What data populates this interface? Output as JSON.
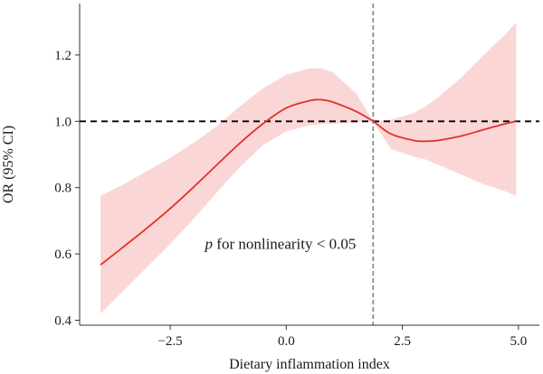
{
  "chart_data": {
    "type": "line",
    "title": "",
    "xlabel": "Dietary inflammation index",
    "ylabel": "OR (95% CI)",
    "xlim": [
      -4.45,
      5.45
    ],
    "ylim": [
      0.385,
      1.355
    ],
    "x_ticks": [
      -2.5,
      0.0,
      2.5,
      5.0
    ],
    "x_tick_labels": [
      "−2.5",
      "0.0",
      "2.5",
      "5.0"
    ],
    "y_ticks": [
      0.4,
      0.6,
      0.8,
      1.0,
      1.2
    ],
    "y_tick_labels": [
      "0.4",
      "0.6",
      "0.8",
      "1.0",
      "1.2"
    ],
    "grid": false,
    "reference_line_y": 1.0,
    "reference_line_x": 1.87,
    "annotation": {
      "p_symbol": "p",
      "text": " for nonlinearity < 0.05",
      "x": -1.75,
      "y": 0.615
    },
    "series": [
      {
        "x": [
          -4.0,
          -3.5,
          -3.0,
          -2.5,
          -2.0,
          -1.5,
          -1.0,
          -0.5,
          0.0,
          0.5,
          0.75,
          1.0,
          1.5,
          1.87,
          2.25,
          2.75,
          3.0,
          3.25,
          3.75,
          4.25,
          4.7,
          4.95
        ],
        "y": [
          0.567,
          0.622,
          0.678,
          0.737,
          0.801,
          0.868,
          0.934,
          0.993,
          1.04,
          1.062,
          1.065,
          1.058,
          1.03,
          1.0,
          0.962,
          0.942,
          0.94,
          0.942,
          0.955,
          0.975,
          0.992,
          1.0
        ],
        "lower": [
          0.42,
          0.49,
          0.56,
          0.63,
          0.705,
          0.785,
          0.862,
          0.928,
          0.97,
          0.988,
          0.992,
          0.993,
          0.996,
          1.0,
          0.917,
          0.893,
          0.885,
          0.87,
          0.84,
          0.81,
          0.79,
          0.775
        ],
        "upper": [
          0.775,
          0.81,
          0.85,
          0.89,
          0.935,
          0.985,
          1.045,
          1.1,
          1.14,
          1.16,
          1.16,
          1.148,
          1.085,
          1.0,
          1.005,
          1.025,
          1.045,
          1.07,
          1.13,
          1.2,
          1.26,
          1.298
        ]
      }
    ],
    "colors": {
      "line": "#e0322b",
      "band": "#fbd6d6",
      "reference_h": "#000000",
      "reference_v": "#8c8c8c",
      "axis": "#333333"
    }
  }
}
